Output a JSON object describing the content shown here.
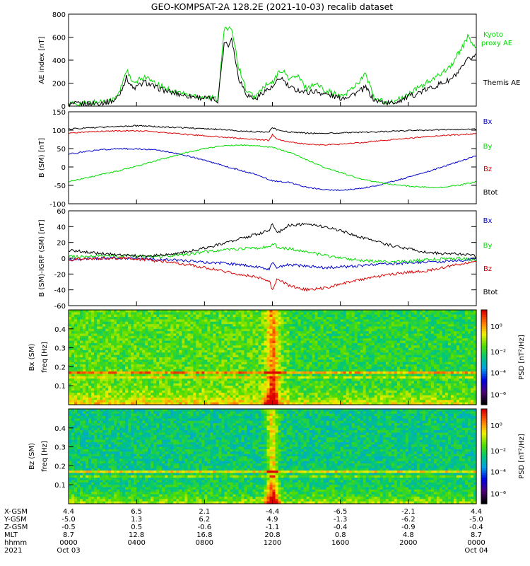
{
  "title": "GEO-KOMPSAT-2A 128.2E (2021-10-03) recalib dataset",
  "colors": {
    "black": "#000000",
    "green": "#00dd00",
    "red": "#dd0000",
    "blue": "#0000cc"
  },
  "chart_data": [
    {
      "type": "line",
      "ylabel": "AE index [nT]",
      "ylim": [
        0,
        800
      ],
      "yticks": [
        "0",
        "200",
        "400",
        "600",
        "800"
      ],
      "xlim_hours": [
        0,
        24
      ],
      "series": [
        {
          "name": "Kyoto proxy AE",
          "color": "green",
          "x": [
            0,
            1,
            2,
            2.7,
            3,
            3.4,
            3.8,
            4.5,
            5,
            6,
            7,
            8,
            8.5,
            8.8,
            9,
            9.2,
            9.4,
            9.6,
            9.8,
            10,
            10.5,
            11,
            11.5,
            12,
            12.5,
            13,
            13.5,
            14,
            14.5,
            15,
            15.5,
            16,
            16.5,
            17,
            17.5,
            18,
            18.5,
            19,
            19.5,
            20,
            20.5,
            21,
            21.5,
            22,
            22.5,
            23,
            23.5,
            24
          ],
          "y": [
            20,
            25,
            40,
            60,
            120,
            320,
            190,
            260,
            200,
            140,
            100,
            80,
            70,
            60,
            420,
            700,
            650,
            690,
            520,
            350,
            120,
            80,
            170,
            200,
            320,
            240,
            260,
            150,
            200,
            150,
            120,
            80,
            130,
            200,
            280,
            60,
            40,
            30,
            60,
            100,
            150,
            200,
            230,
            300,
            350,
            470,
            600,
            500
          ]
        },
        {
          "name": "Themis AE",
          "color": "black",
          "x": [
            0,
            1,
            2,
            2.7,
            3,
            3.4,
            3.8,
            4.5,
            5,
            6,
            7,
            8,
            8.5,
            8.8,
            9,
            9.2,
            9.4,
            9.6,
            9.8,
            10,
            10.5,
            11,
            11.5,
            12,
            12.5,
            13,
            13.5,
            14,
            14.5,
            15,
            15.5,
            16,
            16.5,
            17,
            17.5,
            18,
            18.5,
            19,
            19.5,
            20,
            20.5,
            21,
            21.5,
            22,
            22.5,
            23,
            23.5,
            24
          ],
          "y": [
            15,
            20,
            30,
            50,
            100,
            250,
            150,
            210,
            170,
            120,
            90,
            70,
            60,
            50,
            350,
            580,
            520,
            600,
            420,
            250,
            100,
            60,
            130,
            160,
            250,
            160,
            140,
            120,
            130,
            110,
            90,
            70,
            90,
            120,
            160,
            50,
            35,
            25,
            50,
            80,
            110,
            140,
            170,
            200,
            230,
            300,
            400,
            450
          ]
        }
      ]
    },
    {
      "type": "line",
      "ylabel": "B (SM) [nT]",
      "ylim": [
        -100,
        150
      ],
      "yticks": [
        "-100",
        "-50",
        "0",
        "50",
        "100",
        "150"
      ],
      "xlim_hours": [
        0,
        24
      ],
      "series": [
        {
          "name": "Bx",
          "color": "blue",
          "x": [
            0,
            1,
            2,
            3,
            4,
            5,
            6,
            7,
            8,
            9,
            10,
            11,
            12,
            13,
            14,
            15,
            16,
            17,
            18,
            19,
            20,
            21,
            22,
            23,
            24
          ],
          "y": [
            35,
            42,
            47,
            50,
            49,
            47,
            40,
            30,
            18,
            5,
            -8,
            -20,
            -38,
            -42,
            -55,
            -62,
            -63,
            -60,
            -52,
            -40,
            -28,
            -15,
            0,
            15,
            30
          ]
        },
        {
          "name": "By",
          "color": "green",
          "x": [
            0,
            1,
            2,
            3,
            4,
            5,
            6,
            7,
            8,
            9,
            10,
            11,
            12,
            13,
            14,
            15,
            16,
            17,
            18,
            19,
            20,
            21,
            22,
            23,
            24
          ],
          "y": [
            -40,
            -30,
            -20,
            -10,
            2,
            15,
            28,
            40,
            50,
            57,
            60,
            58,
            53,
            40,
            20,
            0,
            -15,
            -30,
            -40,
            -47,
            -52,
            -55,
            -55,
            -50,
            -40
          ]
        },
        {
          "name": "Bz",
          "color": "red",
          "x": [
            0,
            1,
            2,
            3,
            4,
            5,
            6,
            7,
            8,
            9,
            10,
            11,
            11.8,
            12,
            12.3,
            13,
            14,
            15,
            16,
            17,
            18,
            19,
            20,
            21,
            22,
            23,
            24
          ],
          "y": [
            92,
            95,
            97,
            98,
            98,
            96,
            92,
            88,
            85,
            82,
            78,
            75,
            72,
            88,
            75,
            68,
            62,
            60,
            62,
            65,
            70,
            74,
            78,
            82,
            85,
            88,
            90
          ]
        },
        {
          "name": "Btot",
          "color": "black",
          "x": [
            0,
            1,
            2,
            3,
            4,
            5,
            6,
            7,
            8,
            9,
            10,
            11,
            11.8,
            12,
            12.3,
            13,
            14,
            15,
            16,
            17,
            18,
            19,
            20,
            21,
            22,
            23,
            24
          ],
          "y": [
            103,
            106,
            108,
            110,
            112,
            110,
            108,
            106,
            104,
            102,
            98,
            96,
            95,
            108,
            100,
            95,
            92,
            91,
            93,
            94,
            95,
            97,
            99,
            100,
            101,
            102,
            103
          ]
        }
      ]
    },
    {
      "type": "line",
      "ylabel": "B (SM)-IGRF (SM) [nT]",
      "ylim": [
        -60,
        60
      ],
      "yticks": [
        "-60",
        "-40",
        "-20",
        "0",
        "20",
        "40",
        "60"
      ],
      "xlim_hours": [
        0,
        24
      ],
      "series": [
        {
          "name": "Bx",
          "color": "blue",
          "x": [
            0,
            1,
            2,
            3,
            4,
            5,
            6,
            7,
            8,
            9,
            10,
            11,
            11.8,
            12,
            12.3,
            13,
            14,
            15,
            16,
            17,
            18,
            19,
            20,
            21,
            22,
            23,
            24
          ],
          "y": [
            -2,
            -1,
            0,
            0,
            0,
            -1,
            -2,
            -3,
            -5,
            -6,
            -8,
            -10,
            -14,
            -5,
            -12,
            -8,
            -10,
            -12,
            -11,
            -10,
            -8,
            -7,
            -6,
            -5,
            -4,
            -3,
            0
          ]
        },
        {
          "name": "By",
          "color": "green",
          "x": [
            0,
            1,
            2,
            3,
            4,
            5,
            6,
            7,
            8,
            9,
            10,
            11,
            11.8,
            12,
            12.3,
            13,
            14,
            15,
            16,
            17,
            18,
            19,
            20,
            21,
            22,
            23,
            24
          ],
          "y": [
            2,
            2,
            3,
            3,
            3,
            2,
            3,
            5,
            8,
            10,
            12,
            13,
            14,
            20,
            14,
            12,
            8,
            4,
            0,
            -2,
            -4,
            -5,
            -4,
            -2,
            -1,
            0,
            -2
          ]
        },
        {
          "name": "Bz",
          "color": "red",
          "x": [
            0,
            1,
            2,
            3,
            4,
            5,
            6,
            7,
            8,
            9,
            10,
            11,
            11.8,
            12,
            12.3,
            13,
            14,
            15,
            16,
            17,
            18,
            19,
            20,
            21,
            22,
            23,
            24
          ],
          "y": [
            -2,
            -1,
            0,
            0,
            -1,
            -3,
            -5,
            -8,
            -12,
            -16,
            -20,
            -24,
            -28,
            -40,
            -25,
            -35,
            -40,
            -38,
            -33,
            -28,
            -24,
            -20,
            -18,
            -16,
            -12,
            -8,
            -4
          ]
        },
        {
          "name": "Btot",
          "color": "black",
          "x": [
            0,
            1,
            2,
            3,
            4,
            5,
            6,
            7,
            8,
            9,
            10,
            11,
            11.8,
            12,
            12.3,
            13,
            14,
            15,
            16,
            17,
            18,
            19,
            20,
            21,
            22,
            23,
            24
          ],
          "y": [
            10,
            8,
            6,
            4,
            3,
            3,
            5,
            8,
            13,
            18,
            24,
            30,
            35,
            45,
            32,
            42,
            43,
            40,
            35,
            28,
            22,
            16,
            12,
            8,
            6,
            5,
            3
          ]
        }
      ]
    },
    {
      "type": "heatmap",
      "ylabel": "Bx (SM)",
      "ylabel2": "freq [Hz]",
      "ylim": [
        0,
        0.5
      ],
      "yticks": [
        "0.1",
        "0.2",
        "0.3",
        "0.4"
      ],
      "colorbar_label": "PSD [nT²/Hz]",
      "colorbar_ticks": [
        "10⁰",
        "10⁻²",
        "10⁻⁴",
        "10⁻⁶"
      ],
      "bands_hz": [
        0.167,
        0.14
      ]
    },
    {
      "type": "heatmap",
      "ylabel": "Bz (SM)",
      "ylabel2": "freq [Hz]",
      "ylim": [
        0,
        0.5
      ],
      "yticks": [
        "0.1",
        "0.2",
        "0.3",
        "0.4"
      ],
      "colorbar_label": "PSD [nT²/Hz]",
      "colorbar_ticks": [
        "10⁰",
        "10⁻²",
        "10⁻⁴",
        "10⁻⁶"
      ],
      "bands_hz": [
        0.167,
        0.14
      ]
    }
  ],
  "x_axis": {
    "row_labels": [
      "X-GSM",
      "Y-GSM",
      "Z-GSM",
      "MLT",
      "hhmm",
      "2021"
    ],
    "columns": [
      {
        "hours": 0,
        "xgsm": "4.4",
        "ygsm": "-5.0",
        "zgsm": "-0.5",
        "mlt": "8.7",
        "hhmm": "0000",
        "date": "Oct 03"
      },
      {
        "hours": 4,
        "xgsm": "6.5",
        "ygsm": "1.3",
        "zgsm": "0.5",
        "mlt": "12.8",
        "hhmm": "0400",
        "date": ""
      },
      {
        "hours": 8,
        "xgsm": "2.1",
        "ygsm": "6.2",
        "zgsm": "-0.6",
        "mlt": "16.8",
        "hhmm": "0800",
        "date": ""
      },
      {
        "hours": 12,
        "xgsm": "-4.4",
        "ygsm": "4.9",
        "zgsm": "-1.1",
        "mlt": "20.8",
        "hhmm": "1200",
        "date": ""
      },
      {
        "hours": 16,
        "xgsm": "-6.5",
        "ygsm": "-1.3",
        "zgsm": "-0.4",
        "mlt": "0.8",
        "hhmm": "1600",
        "date": ""
      },
      {
        "hours": 20,
        "xgsm": "-2.1",
        "ygsm": "-6.2",
        "zgsm": "-0.9",
        "mlt": "4.8",
        "hhmm": "2000",
        "date": ""
      },
      {
        "hours": 24,
        "xgsm": "4.4",
        "ygsm": "-5.0",
        "zgsm": "-0.4",
        "mlt": "8.7",
        "hhmm": "0000",
        "date": "Oct 04"
      }
    ]
  }
}
